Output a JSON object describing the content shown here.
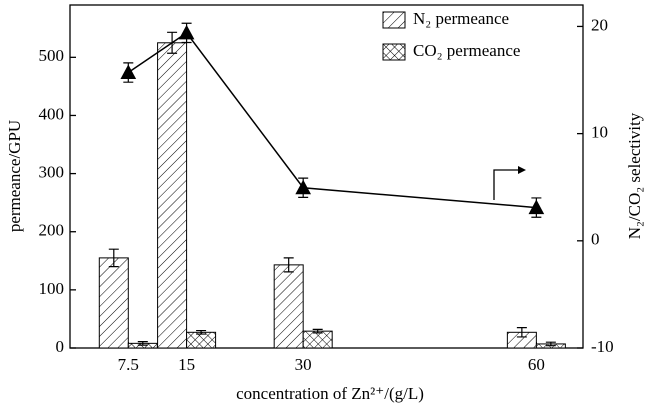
{
  "chart_data": {
    "type": "bar-line",
    "xlabel": "concentration of Zn²⁺/(g/L)",
    "ylabel": "permeance/GPU",
    "y2label": "N₂/CO₂ selectivity",
    "x": [
      7.5,
      15,
      30,
      60
    ],
    "xlim": [
      0,
      66
    ],
    "xticks": [
      7.5,
      15,
      30,
      60
    ],
    "ylim": [
      0,
      590
    ],
    "yticks": [
      0,
      100,
      200,
      300,
      400,
      500
    ],
    "y2lim": [
      -10,
      22
    ],
    "y2ticks": [
      -10,
      0,
      10,
      20
    ],
    "legend": "upper right",
    "series": [
      {
        "name": "N₂ permeance",
        "type": "bar",
        "pattern": "hatch",
        "color": "#000000",
        "values": [
          155,
          525,
          143,
          27
        ],
        "errors": [
          15,
          18,
          12,
          8
        ]
      },
      {
        "name": "CO₂ permeance",
        "type": "bar",
        "pattern": "crosshatch",
        "color": "#000000",
        "values": [
          8,
          27,
          29,
          7
        ],
        "errors": [
          3,
          3,
          3,
          3
        ]
      },
      {
        "type": "line",
        "axis": "y2",
        "marker": "triangle",
        "color": "#000000",
        "values": [
          15.7,
          19.4,
          4.95,
          3.1
        ],
        "errors": [
          0.9,
          0.9,
          0.9,
          0.9
        ]
      }
    ]
  }
}
